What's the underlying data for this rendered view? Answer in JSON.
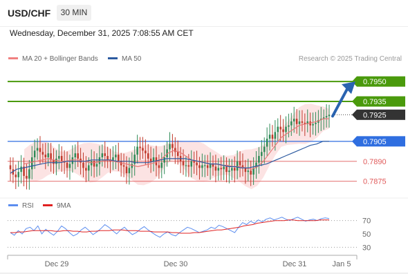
{
  "header": {
    "symbol": "USD/CHF",
    "timeframe": "30 MIN"
  },
  "timestamp": "Wednesday, December 31, 2025 7:08:55 AM CET",
  "legend": {
    "ma20": "MA 20 + Bollinger Bands",
    "ma50": "MA 50",
    "research": "Research © 2025 Trading Central"
  },
  "rsi_legend": {
    "rsi": "RSI",
    "ma": "9MA"
  },
  "colors": {
    "green": "#4a9a0c",
    "blue": "#2f6ee0",
    "red": "#e05a5a",
    "dark": "#333333",
    "candle_up": "#2e8b57",
    "candle_down": "#c0392b",
    "arrow": "#2a63b0"
  },
  "chart_data": [
    {
      "type": "line",
      "title": "USD/CHF 30 MIN",
      "ylim": [
        0.7866,
        0.7962
      ],
      "x_ticks": [
        "Dec 29",
        "Dec 30",
        "Dec 31",
        "Jan 5"
      ],
      "levels": [
        {
          "value": 0.795,
          "label": "0.7950",
          "style": "green",
          "badge": true
        },
        {
          "value": 0.7935,
          "label": "0.7935",
          "style": "green",
          "badge": true
        },
        {
          "value": 0.7925,
          "label": "0.7925",
          "style": "current",
          "badge": true
        },
        {
          "value": 0.7905,
          "label": "0.7905",
          "style": "blue",
          "badge": true
        },
        {
          "value": 0.789,
          "label": "0.7890",
          "style": "red",
          "badge": false
        },
        {
          "value": 0.7875,
          "label": "0.7875",
          "style": "red",
          "badge": false
        }
      ],
      "close_series": [
        0.7884,
        0.788,
        0.7878,
        0.7882,
        0.7886,
        0.7879,
        0.7877,
        0.7884,
        0.7893,
        0.7898,
        0.79,
        0.7897,
        0.7895,
        0.7893,
        0.7896,
        0.7891,
        0.7888,
        0.7892,
        0.7894,
        0.789,
        0.7889,
        0.7885,
        0.7888,
        0.7893,
        0.7896,
        0.7892,
        0.7889,
        0.7885,
        0.7883,
        0.7887,
        0.789,
        0.7886,
        0.7888,
        0.7893,
        0.7896,
        0.7894,
        0.7891,
        0.789,
        0.7893,
        0.7895,
        0.789,
        0.7887,
        0.7886,
        0.7881,
        0.7885,
        0.7888,
        0.7895,
        0.7901,
        0.79,
        0.7898,
        0.7896,
        0.7892,
        0.789,
        0.7893,
        0.7887,
        0.7885,
        0.7889,
        0.7893,
        0.7899,
        0.7903,
        0.79,
        0.7897,
        0.7894,
        0.789,
        0.7887,
        0.7887,
        0.7886,
        0.789,
        0.7889,
        0.7887,
        0.7885,
        0.7887,
        0.7887,
        0.7885,
        0.7888,
        0.7886,
        0.7883,
        0.7885,
        0.7884,
        0.7886,
        0.7882,
        0.7883,
        0.7885,
        0.7883,
        0.789,
        0.7887,
        0.7885,
        0.7882,
        0.7883,
        0.788,
        0.7885,
        0.7889,
        0.7894,
        0.7897,
        0.7901,
        0.7907,
        0.791,
        0.7907,
        0.7912,
        0.7916,
        0.7914,
        0.7912,
        0.7916,
        0.7917,
        0.792,
        0.7922,
        0.7918,
        0.792,
        0.7919,
        0.7918,
        0.792,
        0.7917,
        0.7918,
        0.7919,
        0.7921,
        0.7922,
        0.7923,
        0.7924,
        0.7925
      ],
      "series": [
        {
          "name": "MA 20 + Bollinger Bands",
          "values": [
            0.7888,
            0.7889,
            0.789,
            0.7891,
            0.7892,
            0.7891,
            0.789,
            0.789,
            0.7891,
            0.7891,
            0.789,
            0.7889,
            0.7889,
            0.789,
            0.7891,
            0.789,
            0.7889,
            0.7888,
            0.7887,
            0.7886,
            0.7887,
            0.7888,
            0.7889,
            0.7892,
            0.7896,
            0.7898,
            0.7897,
            0.7894,
            0.7891,
            0.789,
            0.7889,
            0.7888,
            0.7888,
            0.7887,
            0.7887,
            0.7886,
            0.7886,
            0.7885,
            0.7884,
            0.7886,
            0.789,
            0.7896,
            0.7902,
            0.7908,
            0.7911,
            0.7914,
            0.7917,
            0.7918,
            0.7919,
            0.792,
            0.7922,
            0.7922
          ]
        },
        {
          "name": "MA 50",
          "values": [
            0.7881,
            0.7884,
            0.7885,
            0.7886,
            0.7887,
            0.7888,
            0.7889,
            0.7889,
            0.7889,
            0.789,
            0.789,
            0.789,
            0.789,
            0.7891,
            0.7891,
            0.7891,
            0.7891,
            0.789,
            0.789,
            0.789,
            0.7889,
            0.7889,
            0.7889,
            0.789,
            0.7891,
            0.7892,
            0.7892,
            0.7892,
            0.7892,
            0.7891,
            0.789,
            0.7889,
            0.7888,
            0.7888,
            0.7887,
            0.7886,
            0.7886,
            0.7885,
            0.7885,
            0.7886,
            0.7887,
            0.7888,
            0.789,
            0.7892,
            0.7894,
            0.7896,
            0.7898,
            0.79,
            0.7902,
            0.7903,
            0.7905,
            0.7905
          ]
        }
      ],
      "forecast_target": 0.795
    },
    {
      "type": "line",
      "title": "RSI",
      "ylim": [
        20,
        80
      ],
      "y_ticks": [
        70,
        50,
        30
      ],
      "series": [
        {
          "name": "RSI",
          "values": [
            52,
            48,
            55,
            50,
            58,
            60,
            55,
            62,
            50,
            57,
            52,
            48,
            54,
            62,
            58,
            52,
            47,
            50,
            56,
            60,
            55,
            49,
            53,
            58,
            64,
            60,
            55,
            50,
            56,
            60,
            54,
            49,
            52,
            57,
            61,
            56,
            52,
            48,
            45,
            50,
            53,
            49,
            47,
            52,
            56,
            60,
            58,
            55,
            52,
            54,
            56,
            60,
            58,
            63,
            61,
            58,
            55,
            52,
            60,
            67,
            64,
            69,
            66,
            71,
            68,
            72,
            74,
            71,
            73,
            75,
            72,
            70,
            73,
            75,
            72,
            69,
            71,
            72,
            70,
            73,
            74,
            73
          ]
        },
        {
          "name": "9MA",
          "values": [
            52,
            52,
            53,
            53,
            54,
            55,
            55,
            55,
            55,
            55,
            54,
            54,
            55,
            55,
            54,
            54,
            53,
            53,
            54,
            54,
            55,
            55,
            55,
            56,
            56,
            56,
            55,
            55,
            55,
            54,
            54,
            54,
            53,
            53,
            53,
            53,
            52,
            52,
            51,
            51,
            51,
            52,
            52,
            53,
            54,
            55,
            56,
            56,
            57,
            58,
            59,
            60,
            62,
            63,
            64,
            66,
            67,
            68,
            69,
            70,
            70,
            70,
            71,
            71,
            70,
            70,
            70,
            70,
            70,
            71,
            71,
            71
          ]
        }
      ]
    }
  ]
}
